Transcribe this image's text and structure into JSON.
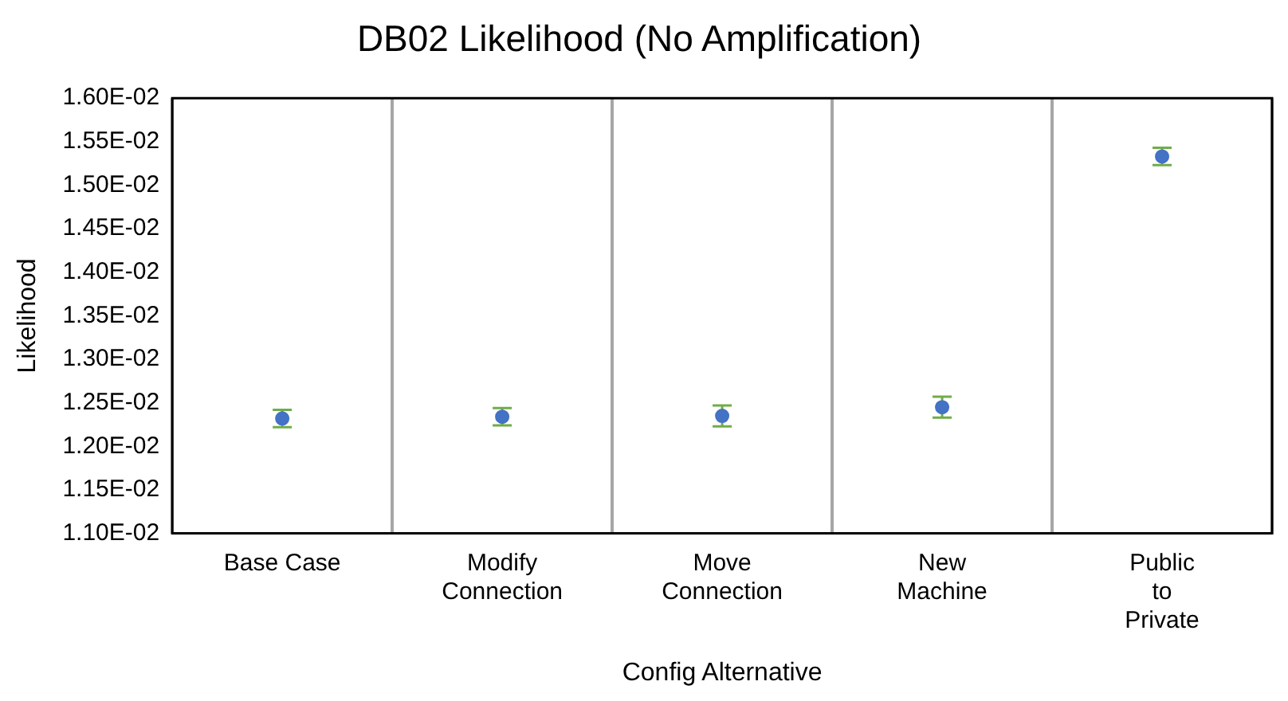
{
  "chart_data": {
    "type": "scatter",
    "title": "DB02 Likelihood (No Amplification)",
    "xlabel": "Config Alternative",
    "ylabel": "Likelihood",
    "categories": [
      "Base Case",
      "Modify Connection",
      "Move Connection",
      "New Machine",
      "Public to Private"
    ],
    "series": [
      {
        "color": "#4472c4",
        "values": [
          0.01232,
          0.01234,
          0.01235,
          0.01245,
          0.01533
        ],
        "errors": [
          0.0001,
          0.0001,
          0.00012,
          0.00012,
          0.0001
        ]
      }
    ],
    "ylim": [
      0.011,
      0.016
    ],
    "yticks": [
      {
        "value": 0.011,
        "label": "1.10E-02"
      },
      {
        "value": 0.0115,
        "label": "1.15E-02"
      },
      {
        "value": 0.012,
        "label": "1.20E-02"
      },
      {
        "value": 0.0125,
        "label": "1.25E-02"
      },
      {
        "value": 0.013,
        "label": "1.30E-02"
      },
      {
        "value": 0.0135,
        "label": "1.35E-02"
      },
      {
        "value": 0.014,
        "label": "1.40E-02"
      },
      {
        "value": 0.0145,
        "label": "1.45E-02"
      },
      {
        "value": 0.015,
        "label": "1.50E-02"
      },
      {
        "value": 0.0155,
        "label": "1.55E-02"
      },
      {
        "value": 0.016,
        "label": "1.60E-02"
      }
    ],
    "grid": "x",
    "legend": false,
    "marker": "circle"
  }
}
